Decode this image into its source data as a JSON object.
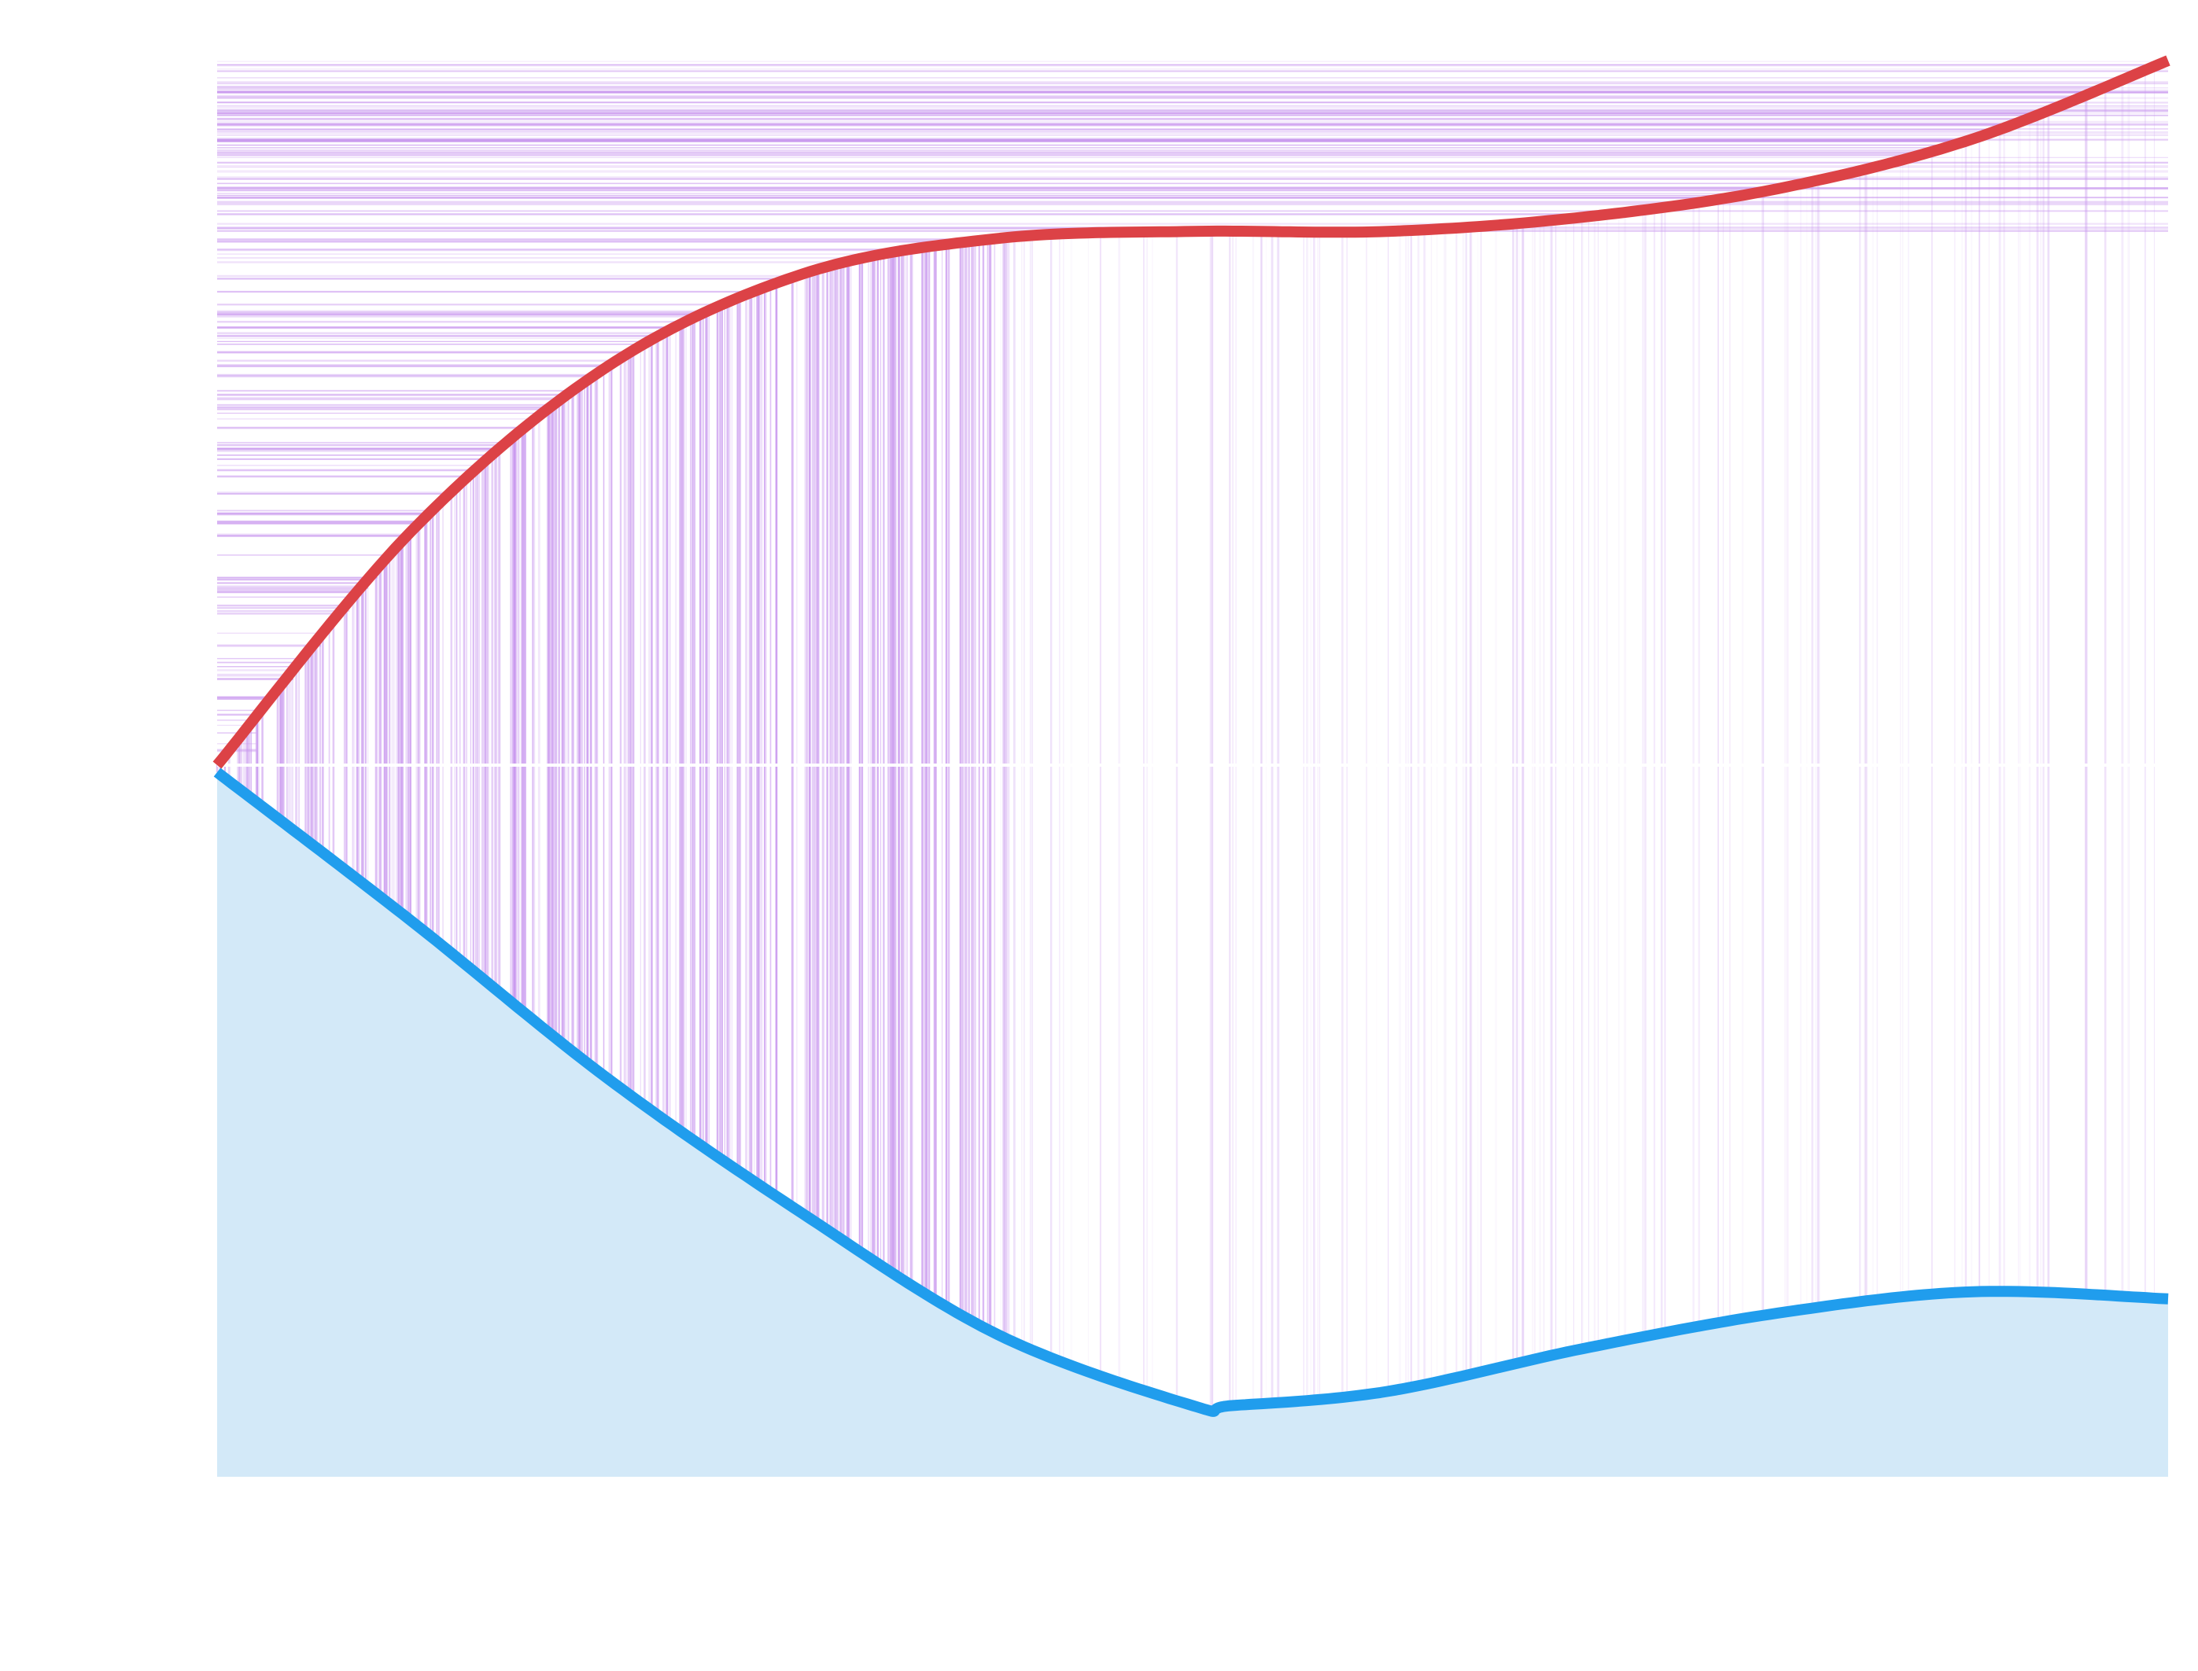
{
  "chart_data": {
    "type": "line",
    "title": "",
    "xlabel": "",
    "ylabel": "",
    "grid": false,
    "legend": "none",
    "xlim": [
      0,
      1
    ],
    "ylim": [
      -1,
      1
    ],
    "series": [
      {
        "color": "#dc4246",
        "points": [
          [
            0.0,
            0.0
          ],
          [
            0.1,
            0.33
          ],
          [
            0.2,
            0.56
          ],
          [
            0.3,
            0.69
          ],
          [
            0.4,
            0.74
          ],
          [
            0.5,
            0.75
          ],
          [
            0.6,
            0.75
          ],
          [
            0.7,
            0.77
          ],
          [
            0.8,
            0.81
          ],
          [
            0.9,
            0.88
          ],
          [
            1.0,
            0.99
          ]
        ]
      },
      {
        "color": "#209ded",
        "fill": "#d3e9f8",
        "points": [
          [
            0.0,
            -0.01
          ],
          [
            0.1,
            -0.22
          ],
          [
            0.2,
            -0.44
          ],
          [
            0.3,
            -0.63
          ],
          [
            0.4,
            -0.8
          ],
          [
            0.5,
            -0.9
          ],
          [
            0.52,
            -0.9
          ],
          [
            0.6,
            -0.88
          ],
          [
            0.7,
            -0.82
          ],
          [
            0.8,
            -0.77
          ],
          [
            0.9,
            -0.74
          ],
          [
            1.0,
            -0.75
          ]
        ]
      }
    ],
    "background_lines_color": "#c896ee"
  }
}
